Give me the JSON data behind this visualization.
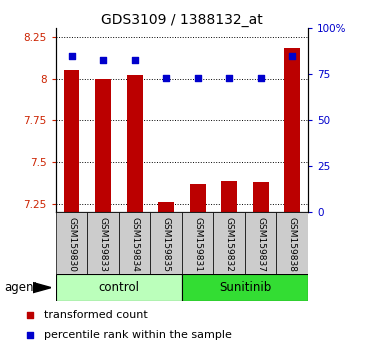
{
  "title": "GDS3109 / 1388132_at",
  "samples": [
    "GSM159830",
    "GSM159833",
    "GSM159834",
    "GSM159835",
    "GSM159831",
    "GSM159832",
    "GSM159837",
    "GSM159838"
  ],
  "transformed_count": [
    8.05,
    8.0,
    8.02,
    7.26,
    7.37,
    7.39,
    7.38,
    8.18
  ],
  "percentile_rank": [
    85,
    83,
    83,
    73,
    73,
    73,
    73,
    85
  ],
  "ylim_left": [
    7.2,
    8.3
  ],
  "ylim_right": [
    0,
    100
  ],
  "yticks_left": [
    7.25,
    7.5,
    7.75,
    8.0,
    8.25
  ],
  "yticks_right": [
    0,
    25,
    50,
    75,
    100
  ],
  "ytick_labels_left": [
    "7.25",
    "7.5",
    "7.75",
    "8",
    "8.25"
  ],
  "ytick_labels_right": [
    "0",
    "25",
    "50",
    "75",
    "100%"
  ],
  "bar_color": "#bb0000",
  "dot_color": "#0000cc",
  "control_bg": "#bbffbb",
  "sunitinib_bg": "#33dd33",
  "xticklabel_bg": "#cccccc",
  "bar_width": 0.5,
  "baseline": 7.2,
  "agent_label": "agent",
  "legend_items": [
    "transformed count",
    "percentile rank within the sample"
  ]
}
